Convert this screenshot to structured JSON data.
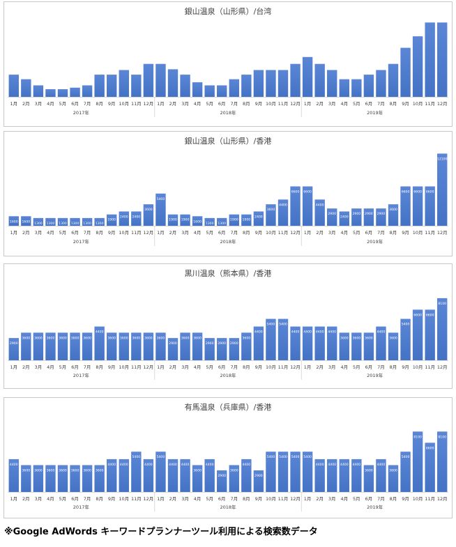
{
  "note": "※Google AdWords キーワードプランナーツール利用による検索数データ",
  "months": [
    "1月",
    "2月",
    "3月",
    "4月",
    "5月",
    "6月",
    "7月",
    "8月",
    "9月",
    "10月",
    "11月",
    "12月",
    "1月",
    "2月",
    "3月",
    "4月",
    "5月",
    "6月",
    "7月",
    "8月",
    "9月",
    "10月",
    "11月",
    "12月",
    "1月",
    "2月",
    "3月",
    "4月",
    "5月",
    "6月",
    "7月",
    "8月",
    "9月",
    "10月",
    "11月",
    "12月"
  ],
  "years": [
    "2017年",
    "2018年",
    "2019年"
  ],
  "colors": {
    "bar": "#4472c4",
    "bar_top": "#5b86d6",
    "grid": "#d9d9d9"
  },
  "chart_data": [
    {
      "type": "bar",
      "title": "銀山温泉（山形県）/台湾",
      "show_values": false,
      "ylim": [
        0,
        10
      ],
      "values": [
        2.9,
        2.3,
        1.5,
        1.0,
        1.0,
        1.2,
        1.5,
        2.9,
        2.9,
        3.5,
        2.9,
        4.3,
        4.3,
        3.6,
        2.9,
        1.9,
        1.5,
        1.5,
        2.3,
        2.9,
        3.5,
        3.5,
        3.5,
        4.3,
        5.2,
        4.3,
        3.5,
        2.3,
        2.3,
        2.9,
        3.5,
        4.3,
        6.4,
        7.9,
        9.7,
        9.7
      ]
    },
    {
      "type": "bar",
      "title": "銀山温泉（山形県）/香港",
      "show_values": true,
      "ylim": [
        0,
        12500
      ],
      "values": [
        1600,
        1600,
        1300,
        1300,
        1300,
        1300,
        1300,
        1300,
        1900,
        2400,
        2400,
        3600,
        5400,
        1900,
        1900,
        1600,
        1300,
        1300,
        1900,
        1900,
        2400,
        3600,
        4400,
        6600,
        6600,
        4400,
        2900,
        2400,
        2900,
        2900,
        2900,
        3600,
        6600,
        6600,
        6600,
        12100
      ],
      "labels": [
        "1600",
        "1600",
        "1300",
        "1300",
        "1300",
        "1300",
        "1300",
        "1300",
        "1900",
        "2400",
        "2400",
        "3600",
        "5400",
        "1900",
        "1900",
        "1600",
        "1300",
        "1300",
        "1900",
        "1900",
        "2400",
        "3600",
        "4400",
        "6600",
        "6600",
        "4400",
        "2900",
        "2400",
        "2900",
        "2900",
        "2900",
        "3600",
        "6600",
        "6600",
        "6600",
        "12100"
      ]
    },
    {
      "type": "bar",
      "title": "黒川温泉（熊本県）/香港",
      "show_values": true,
      "ylim": [
        0,
        10000
      ],
      "values": [
        2900,
        3600,
        3600,
        3600,
        3600,
        3600,
        3600,
        4400,
        3600,
        3600,
        3600,
        3600,
        3600,
        2900,
        3600,
        3600,
        2900,
        2900,
        2900,
        3600,
        4400,
        5400,
        5400,
        4400,
        4400,
        4400,
        4400,
        3600,
        3600,
        3600,
        4400,
        3600,
        5400,
        6600,
        6600,
        8100
      ],
      "labels": [
        "2900",
        "3600",
        "3600",
        "3600",
        "3600",
        "3600",
        "3600",
        "4400",
        "3600",
        "3600",
        "3600",
        "3600",
        "3600",
        "2900",
        "3600",
        "3600",
        "2900",
        "2900",
        "2900",
        "3600",
        "4400",
        "5400",
        "5400",
        "4400",
        "4400",
        "4400",
        "4400",
        "3600",
        "3600",
        "3600",
        "4400",
        "3600",
        "5400",
        "6600",
        "6600",
        "8100"
      ]
    },
    {
      "type": "bar",
      "title": "有馬温泉（兵庫県）/香港",
      "show_values": true,
      "ylim": [
        0,
        10000
      ],
      "values": [
        4400,
        3600,
        3600,
        3600,
        3600,
        3600,
        3600,
        3600,
        4400,
        4400,
        5400,
        4400,
        5400,
        4400,
        4400,
        3600,
        4400,
        2900,
        3600,
        4400,
        2900,
        5400,
        5400,
        5400,
        5400,
        4400,
        4400,
        4400,
        4400,
        3600,
        4400,
        3600,
        5400,
        8100,
        6600,
        8100
      ],
      "labels": [
        "4400",
        "3600",
        "3600",
        "3600",
        "3600",
        "3600",
        "3600",
        "3600",
        "4400",
        "4400",
        "5400",
        "4400",
        "5400",
        "4400",
        "4400",
        "3600",
        "4400",
        "2900",
        "3600",
        "4400",
        "2900",
        "5400",
        "5400",
        "5400",
        "5400",
        "4400",
        "4400",
        "4400",
        "4400",
        "3600",
        "4400",
        "3600",
        "5400",
        "8100",
        "6600",
        "8100"
      ]
    }
  ]
}
